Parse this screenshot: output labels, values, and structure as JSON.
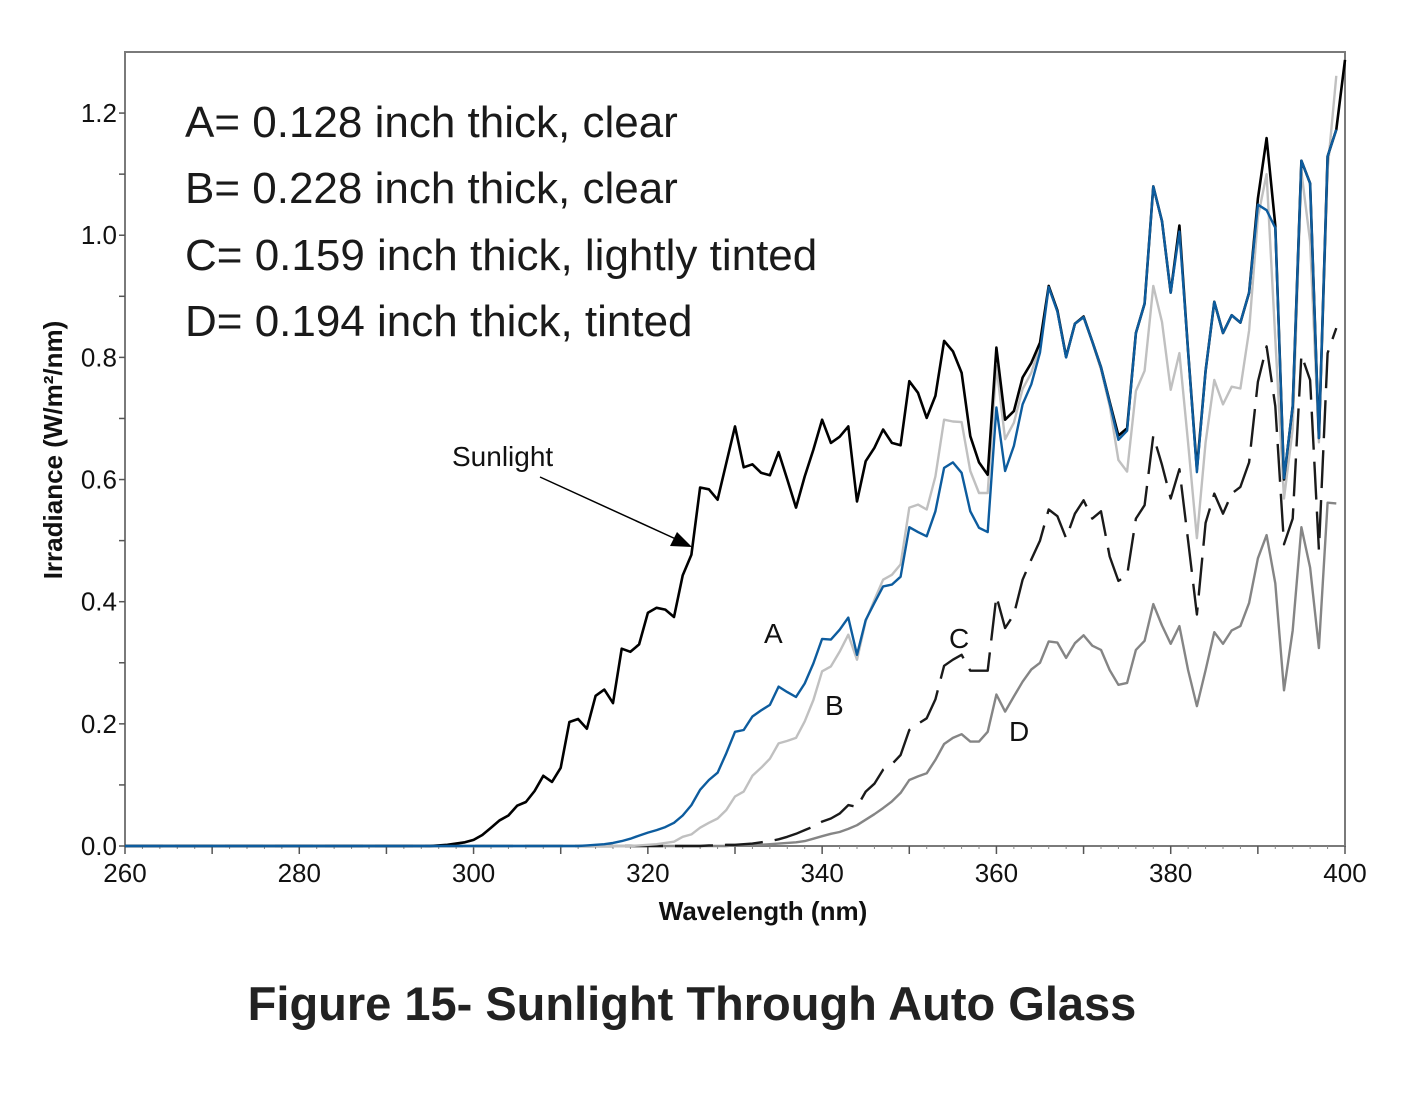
{
  "chart_data": {
    "type": "line",
    "title": "",
    "caption": "Figure 15- Sunlight Through Auto Glass",
    "xlabel": "Wavelength (nm)",
    "ylabel": "Irradiance (W/m²/nm)",
    "xlim": [
      260,
      400
    ],
    "ylim": [
      0,
      1.3
    ],
    "x_ticks": [
      "260",
      "280",
      "300",
      "320",
      "340",
      "360",
      "380",
      "400"
    ],
    "y_ticks": [
      "0.0",
      "0.2",
      "0.4",
      "0.6",
      "0.8",
      "1.0",
      "1.2"
    ],
    "grid": false,
    "legend": {
      "placement": "top-left",
      "entries": [
        "A= 0.128 inch thick, clear",
        "B= 0.228 inch thick, clear",
        "C= 0.159 inch thick, lightly tinted",
        "D= 0.194 inch thick, tinted"
      ]
    },
    "annotations": {
      "sunlight": "Sunlight",
      "a": "A",
      "b": "B",
      "c": "C",
      "d": "D"
    },
    "x": [
      260,
      295,
      296,
      297,
      298,
      299,
      300,
      301,
      302,
      303,
      304,
      305,
      306,
      307,
      308,
      309,
      310,
      311,
      312,
      313,
      314,
      315,
      316,
      317,
      318,
      319,
      320,
      321,
      322,
      323,
      324,
      325,
      326,
      327,
      328,
      329,
      330,
      331,
      332,
      333,
      334,
      335,
      336,
      337,
      338,
      339,
      340,
      341,
      342,
      343,
      344,
      345,
      346,
      347,
      348,
      349,
      350,
      351,
      352,
      353,
      354,
      355,
      356,
      357,
      358,
      359,
      360,
      361,
      362,
      363,
      364,
      365,
      366,
      367,
      368,
      369,
      370,
      371,
      372,
      373,
      374,
      375,
      376,
      377,
      378,
      379,
      380,
      381,
      382,
      383,
      384,
      385,
      386,
      387,
      388,
      389,
      390,
      391,
      392,
      393,
      394,
      395,
      396,
      397,
      398,
      399,
      400
    ],
    "series": [
      {
        "name": "Sunlight",
        "color": "#000000",
        "dash": false,
        "values": [
          0,
          0,
          0.001,
          0.002,
          0.004,
          0.006,
          0.01,
          0.018,
          0.03,
          0.042,
          0.05,
          0.066,
          0.072,
          0.09,
          0.115,
          0.105,
          0.128,
          0.203,
          0.208,
          0.192,
          0.246,
          0.256,
          0.234,
          0.323,
          0.318,
          0.33,
          0.382,
          0.39,
          0.387,
          0.375,
          0.443,
          0.477,
          0.587,
          0.584,
          0.567,
          0.627,
          0.687,
          0.62,
          0.625,
          0.611,
          0.607,
          0.645,
          0.6,
          0.554,
          0.605,
          0.649,
          0.698,
          0.66,
          0.67,
          0.687,
          0.564,
          0.63,
          0.652,
          0.682,
          0.66,
          0.656,
          0.761,
          0.742,
          0.701,
          0.737,
          0.827,
          0.81,
          0.775,
          0.671,
          0.628,
          0.608,
          0.816,
          0.698,
          0.712,
          0.767,
          0.791,
          0.824,
          0.917,
          0.877,
          0.801,
          0.855,
          0.867,
          0.826,
          0.784,
          0.727,
          0.672,
          0.684,
          0.84,
          0.888,
          1.08,
          1.023,
          0.906,
          1.016,
          0.81,
          0.617,
          0.778,
          0.891,
          0.84,
          0.869,
          0.857,
          0.906,
          1.06,
          1.159,
          1.016,
          0.6,
          0.72,
          1.122,
          1.085,
          0.668,
          1.129,
          1.173,
          1.287
        ]
      },
      {
        "name": "A",
        "color": "#0d5c9e",
        "dash": false,
        "values": [
          0,
          0,
          0,
          0,
          0,
          0,
          0,
          0,
          0,
          0,
          0,
          0,
          0,
          0,
          0,
          0,
          0,
          0,
          0,
          0.001,
          0.002,
          0.003,
          0.005,
          0.008,
          0.012,
          0.017,
          0.022,
          0.026,
          0.031,
          0.038,
          0.05,
          0.067,
          0.092,
          0.108,
          0.12,
          0.152,
          0.187,
          0.19,
          0.212,
          0.222,
          0.231,
          0.261,
          0.252,
          0.244,
          0.266,
          0.299,
          0.339,
          0.338,
          0.354,
          0.374,
          0.313,
          0.37,
          0.398,
          0.425,
          0.428,
          0.441,
          0.522,
          0.514,
          0.507,
          0.548,
          0.619,
          0.628,
          0.611,
          0.548,
          0.521,
          0.514,
          0.718,
          0.614,
          0.655,
          0.723,
          0.756,
          0.808,
          0.915,
          0.875,
          0.8,
          0.855,
          0.866,
          0.826,
          0.784,
          0.725,
          0.665,
          0.68,
          0.84,
          0.888,
          1.08,
          1.023,
          0.906,
          1.006,
          0.81,
          0.612,
          0.778,
          0.891,
          0.84,
          0.869,
          0.857,
          0.906,
          1.05,
          1.041,
          1.012,
          0.602,
          0.72,
          1.122,
          1.085,
          0.668,
          1.129,
          1.173,
          null
        ]
      },
      {
        "name": "B",
        "color": "#c0c0c0",
        "dash": false,
        "values": [
          0,
          0,
          0,
          0,
          0,
          0,
          0,
          0,
          0,
          0,
          0,
          0,
          0,
          0,
          0,
          0,
          0,
          0,
          0,
          0,
          0,
          0,
          0,
          0,
          0,
          0.001,
          0.002,
          0.003,
          0.005,
          0.007,
          0.015,
          0.019,
          0.03,
          0.038,
          0.045,
          0.059,
          0.081,
          0.089,
          0.115,
          0.128,
          0.143,
          0.168,
          0.172,
          0.177,
          0.204,
          0.239,
          0.286,
          0.294,
          0.318,
          0.346,
          0.305,
          0.368,
          0.403,
          0.436,
          0.444,
          0.461,
          0.554,
          0.559,
          0.551,
          0.605,
          0.698,
          0.695,
          0.694,
          0.614,
          0.578,
          0.578,
          0.786,
          0.666,
          0.693,
          0.748,
          0.775,
          0.819,
          0.915,
          0.875,
          0.8,
          0.855,
          0.865,
          0.825,
          0.78,
          0.72,
          0.632,
          0.613,
          0.745,
          0.778,
          0.917,
          0.858,
          0.747,
          0.807,
          0.66,
          0.504,
          0.661,
          0.763,
          0.723,
          0.752,
          0.749,
          0.844,
          1.03,
          1.1,
          0.83,
          0.569,
          0.683,
          1.104,
          0.99,
          0.661,
          1.107,
          1.261,
          null
        ]
      },
      {
        "name": "C",
        "color": "#1a1a1a",
        "dash": true,
        "values": [
          0,
          0,
          0,
          0,
          0,
          0,
          0,
          0,
          0,
          0,
          0,
          0,
          0,
          0,
          0,
          0,
          0,
          0,
          0,
          0,
          0,
          0,
          0,
          0,
          0,
          0,
          0,
          0,
          0,
          0,
          0,
          0,
          0,
          0.001,
          0.001,
          0.002,
          0.002,
          0.003,
          0.004,
          0.006,
          0.008,
          0.011,
          0.015,
          0.02,
          0.026,
          0.032,
          0.04,
          0.045,
          0.053,
          0.067,
          0.064,
          0.089,
          0.102,
          0.125,
          0.134,
          0.149,
          0.19,
          0.2,
          0.209,
          0.24,
          0.295,
          0.305,
          0.313,
          0.287,
          0.287,
          0.287,
          0.409,
          0.357,
          0.379,
          0.436,
          0.469,
          0.5,
          0.551,
          0.54,
          0.504,
          0.544,
          0.566,
          0.536,
          0.548,
          0.474,
          0.434,
          0.443,
          0.536,
          0.558,
          0.672,
          0.624,
          0.569,
          0.617,
          0.5,
          0.379,
          0.529,
          0.577,
          0.544,
          0.577,
          0.588,
          0.628,
          0.76,
          0.818,
          0.72,
          0.494,
          0.536,
          0.804,
          0.763,
          0.485,
          0.807,
          0.848,
          null
        ]
      },
      {
        "name": "D",
        "color": "#858585",
        "dash": false,
        "values": [
          0,
          0,
          0,
          0,
          0,
          0,
          0,
          0,
          0,
          0,
          0,
          0,
          0,
          0,
          0,
          0,
          0,
          0,
          0,
          0,
          0,
          0,
          0,
          0,
          0,
          0,
          0,
          0,
          0,
          0,
          0,
          0,
          0,
          0,
          0,
          0,
          0.001,
          0.001,
          0.002,
          0.002,
          0.003,
          0.004,
          0.005,
          0.006,
          0.008,
          0.012,
          0.016,
          0.02,
          0.023,
          0.028,
          0.034,
          0.043,
          0.052,
          0.062,
          0.073,
          0.087,
          0.108,
          0.114,
          0.119,
          0.141,
          0.167,
          0.177,
          0.183,
          0.171,
          0.171,
          0.187,
          0.248,
          0.22,
          0.245,
          0.269,
          0.289,
          0.3,
          0.335,
          0.333,
          0.308,
          0.332,
          0.345,
          0.328,
          0.321,
          0.288,
          0.264,
          0.267,
          0.321,
          0.336,
          0.396,
          0.361,
          0.331,
          0.36,
          0.288,
          0.229,
          0.288,
          0.35,
          0.331,
          0.353,
          0.36,
          0.398,
          0.471,
          0.509,
          0.43,
          0.255,
          0.353,
          0.522,
          0.456,
          0.324,
          0.562,
          0.561,
          null
        ]
      }
    ]
  }
}
